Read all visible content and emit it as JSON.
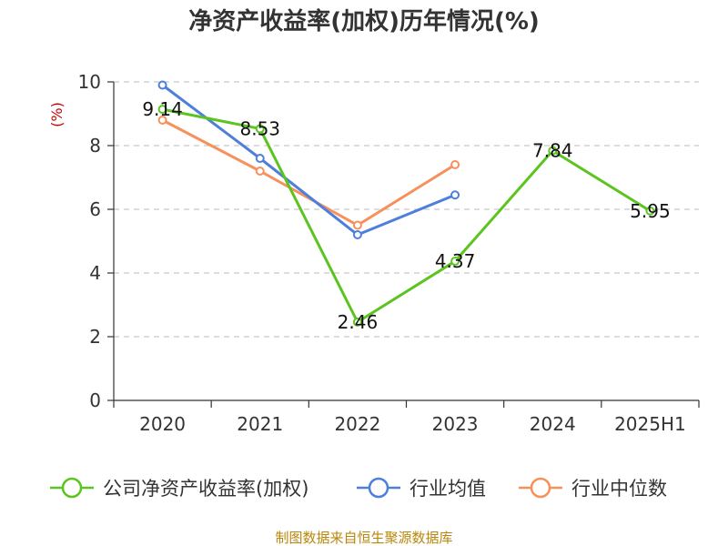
{
  "chart_data": {
    "type": "line",
    "title": "净资产收益率(加权)历年情况(%)",
    "ylabel": "(%)",
    "xlabel": "",
    "categories": [
      "2020",
      "2021",
      "2022",
      "2023",
      "2024",
      "2025H1"
    ],
    "ylim": [
      0,
      10
    ],
    "yticks": [
      0,
      2,
      4,
      6,
      8,
      10
    ],
    "grid": "horizontal dashed",
    "legend_position": "bottom",
    "series": [
      {
        "name": "公司净资产收益率(加权)",
        "color": "#5cc41f",
        "values": [
          9.14,
          8.53,
          2.46,
          4.37,
          7.84,
          5.95
        ],
        "labels": [
          "9.14",
          "8.53",
          "2.46",
          "4.37",
          "7.84",
          "5.95"
        ]
      },
      {
        "name": "行业均值",
        "color": "#4e7fdb",
        "values": [
          9.9,
          7.6,
          5.2,
          6.45,
          null,
          null
        ]
      },
      {
        "name": "行业中位数",
        "color": "#f7905a",
        "values": [
          8.8,
          7.2,
          5.5,
          7.4,
          null,
          null
        ]
      }
    ]
  },
  "source": "制图数据来自恒生聚源数据库"
}
